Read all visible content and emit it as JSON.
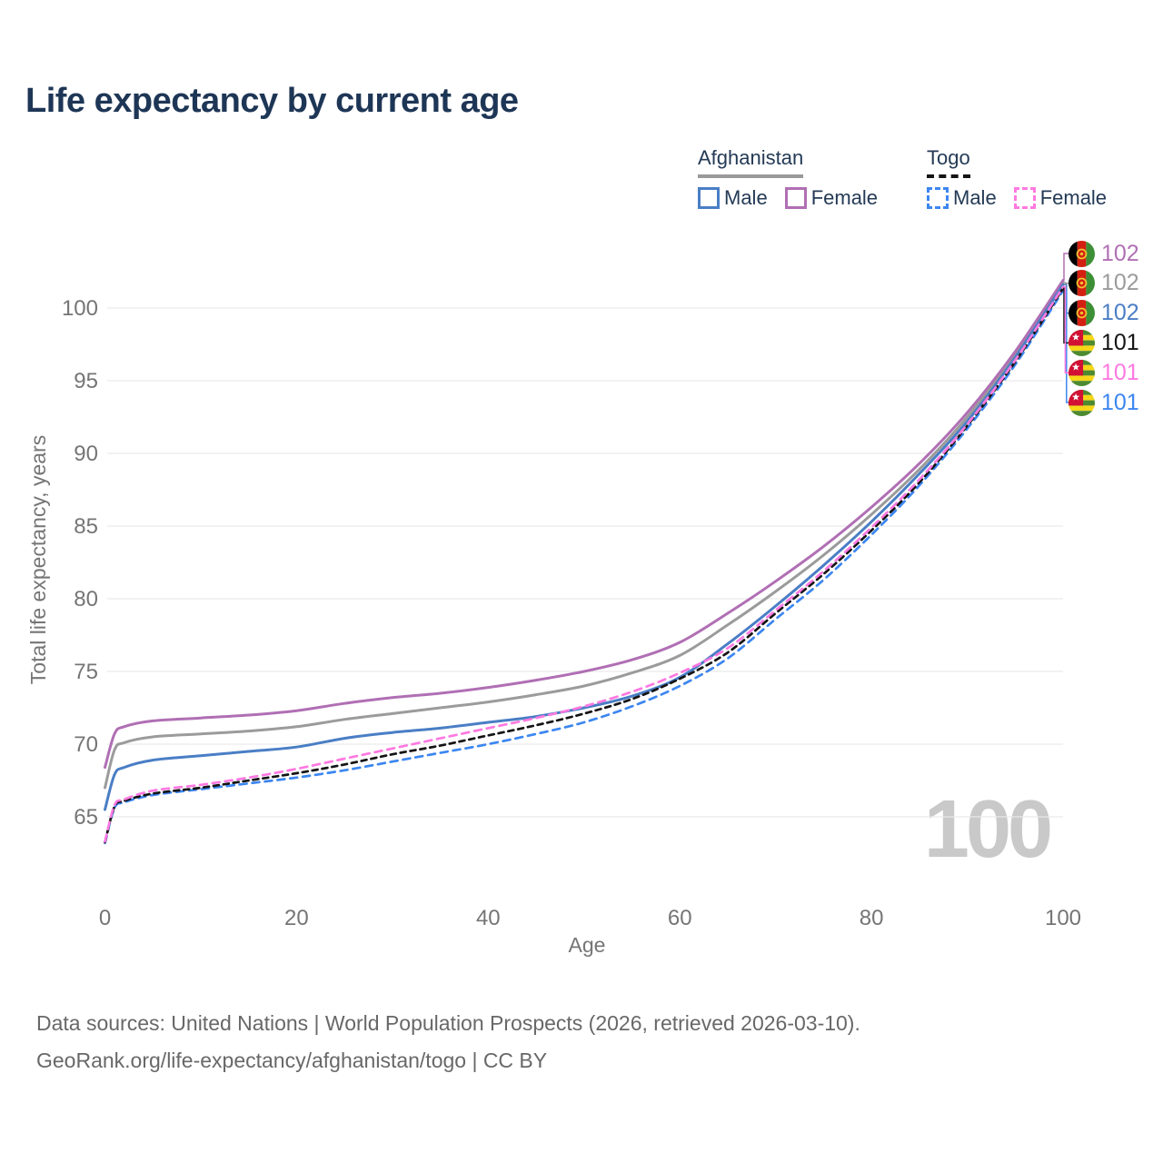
{
  "title": "Life expectancy by current age",
  "legend": {
    "afghanistan": {
      "header": "Afghanistan",
      "male_label": "Male",
      "female_label": "Female",
      "male_color": "#4a7ec5",
      "female_color": "#b06fb4",
      "line_style": "solid",
      "underline_color": "#9a9a9a"
    },
    "togo": {
      "header": "Togo",
      "male_label": "Male",
      "female_label": "Female",
      "male_color": "#3c86f0",
      "female_color": "#ff79e1",
      "line_style": "dashed",
      "underline_color": "#141414"
    }
  },
  "watermark": "100",
  "chart_data": {
    "type": "line",
    "title": "Life expectancy by current age",
    "xlabel": "Age",
    "ylabel": "Total life expectancy, years",
    "xlim": [
      0,
      100
    ],
    "ylim": [
      61,
      103
    ],
    "x_ticks": [
      0,
      20,
      40,
      60,
      80,
      100
    ],
    "y_ticks": [
      65,
      70,
      75,
      80,
      85,
      90,
      95,
      100
    ],
    "grid": "horizontal-only",
    "legend_position": "top-right",
    "x": [
      0,
      1,
      2,
      5,
      10,
      15,
      20,
      25,
      30,
      35,
      40,
      45,
      50,
      55,
      60,
      65,
      70,
      75,
      80,
      85,
      90,
      95,
      100
    ],
    "series": [
      {
        "name": "Afghanistan Both sexes",
        "country": "Afghanistan",
        "sex": "both",
        "color": "#9b9b9b",
        "dash": "solid",
        "end_label": "102",
        "values": [
          67.0,
          69.6,
          70.1,
          70.5,
          70.7,
          70.9,
          71.2,
          71.7,
          72.1,
          72.5,
          72.9,
          73.4,
          74.0,
          74.9,
          76.1,
          78.2,
          80.5,
          83.0,
          85.8,
          88.9,
          92.5,
          96.8,
          101.75
        ]
      },
      {
        "name": "Afghanistan Female",
        "country": "Afghanistan",
        "sex": "female",
        "color": "#b06fb4",
        "dash": "solid",
        "end_label": "102",
        "values": [
          68.4,
          70.7,
          71.2,
          71.6,
          71.8,
          72.0,
          72.3,
          72.8,
          73.2,
          73.5,
          73.9,
          74.4,
          75.0,
          75.8,
          77.0,
          79.0,
          81.2,
          83.6,
          86.3,
          89.3,
          92.8,
          97.0,
          101.9
        ]
      },
      {
        "name": "Afghanistan Male",
        "country": "Afghanistan",
        "sex": "male",
        "color": "#4a7ec5",
        "dash": "solid",
        "end_label": "102",
        "values": [
          65.5,
          67.9,
          68.4,
          68.9,
          69.2,
          69.5,
          69.8,
          70.4,
          70.8,
          71.1,
          71.5,
          71.9,
          72.5,
          73.3,
          74.6,
          76.9,
          79.5,
          82.3,
          85.3,
          88.6,
          92.2,
          96.6,
          101.6
        ]
      },
      {
        "name": "Togo Male",
        "country": "Togo",
        "sex": "male",
        "color": "#3c86f0",
        "dash": "dashed",
        "end_label": "101",
        "values": [
          63.2,
          65.6,
          66.0,
          66.5,
          66.9,
          67.3,
          67.7,
          68.2,
          68.8,
          69.4,
          70.0,
          70.7,
          71.5,
          72.6,
          74.0,
          75.9,
          78.6,
          81.3,
          84.4,
          87.8,
          91.7,
          96.1,
          101.2
        ]
      },
      {
        "name": "Togo Both sexes",
        "country": "Togo",
        "sex": "both",
        "color": "#141414",
        "dash": "dashed",
        "end_label": "101",
        "values": [
          63.25,
          65.7,
          66.1,
          66.6,
          67.0,
          67.5,
          68.0,
          68.6,
          69.3,
          69.9,
          70.6,
          71.3,
          72.1,
          73.1,
          74.5,
          76.3,
          79.0,
          81.7,
          84.7,
          88.0,
          91.9,
          96.3,
          101.35
        ]
      },
      {
        "name": "Togo Female",
        "country": "Togo",
        "sex": "female",
        "color": "#ff79e1",
        "dash": "dashed",
        "end_label": "101",
        "values": [
          63.3,
          65.8,
          66.2,
          66.8,
          67.2,
          67.7,
          68.3,
          69.0,
          69.7,
          70.4,
          71.1,
          71.8,
          72.6,
          73.6,
          74.9,
          76.6,
          79.2,
          81.9,
          84.9,
          88.2,
          92.0,
          96.4,
          101.45
        ]
      }
    ]
  },
  "value_labels": [
    {
      "series": "Afghanistan Female",
      "flag": "afghanistan",
      "value": "102",
      "color": "#b06fb4"
    },
    {
      "series": "Afghanistan Both sexes",
      "flag": "afghanistan",
      "value": "102",
      "color": "#9b9b9b"
    },
    {
      "series": "Afghanistan Male",
      "flag": "afghanistan",
      "value": "102",
      "color": "#4a7ec5"
    },
    {
      "series": "Togo Both sexes",
      "flag": "togo",
      "value": "101",
      "color": "#141414"
    },
    {
      "series": "Togo Female",
      "flag": "togo",
      "value": "101",
      "color": "#ff79e1"
    },
    {
      "series": "Togo Male",
      "flag": "togo",
      "value": "101",
      "color": "#3c86f0"
    }
  ],
  "footer": {
    "line1": "Data sources: United Nations | World Population Prospects (2026, retrieved 2026-03-10).",
    "line2": "GeoRank.org/life-expectancy/afghanistan/togo | CC BY"
  }
}
